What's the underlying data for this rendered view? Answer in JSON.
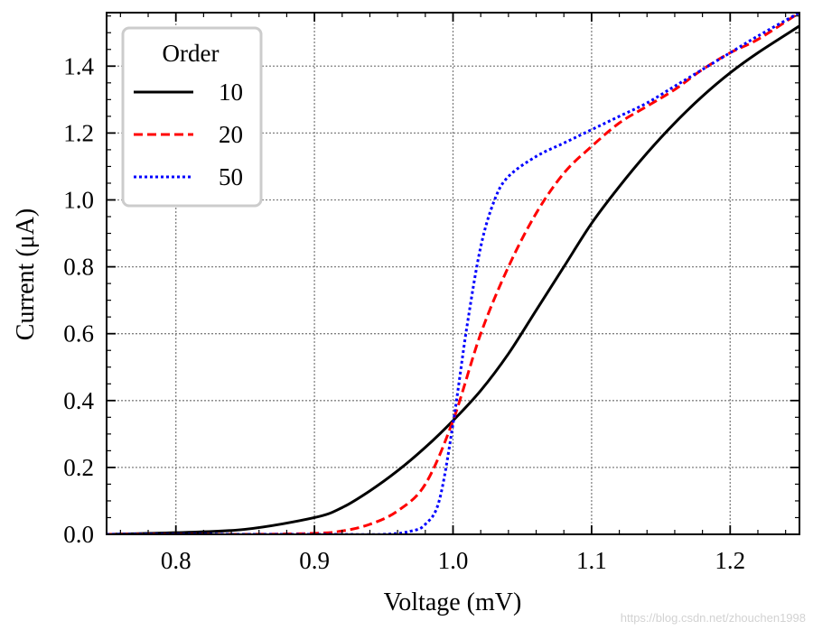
{
  "chart_data": {
    "type": "line",
    "title": "",
    "xlabel": "Voltage (mV)",
    "ylabel": "Current (μA)",
    "xlim": [
      0.75,
      1.25
    ],
    "ylim": [
      0.0,
      1.56
    ],
    "xticks": [
      0.8,
      0.9,
      1.0,
      1.1,
      1.2
    ],
    "xtick_labels": [
      "0.8",
      "0.9",
      "1.0",
      "1.1",
      "1.2"
    ],
    "yticks": [
      0.0,
      0.2,
      0.4,
      0.6,
      0.8,
      1.0,
      1.2,
      1.4
    ],
    "ytick_labels": [
      "0.0",
      "0.2",
      "0.4",
      "0.6",
      "0.8",
      "1.0",
      "1.2",
      "1.4"
    ],
    "grid": true,
    "legend": {
      "title": "Order",
      "placement": "top-left"
    },
    "series": [
      {
        "name": "10",
        "color": "#000000",
        "style": "solid",
        "x": [
          0.75,
          0.8,
          0.85,
          0.9,
          0.92,
          0.94,
          0.96,
          0.98,
          1.0,
          1.02,
          1.04,
          1.06,
          1.08,
          1.1,
          1.12,
          1.14,
          1.16,
          1.18,
          1.2,
          1.22,
          1.25
        ],
        "y": [
          0.0,
          0.005,
          0.015,
          0.05,
          0.08,
          0.13,
          0.19,
          0.26,
          0.34,
          0.43,
          0.54,
          0.67,
          0.8,
          0.93,
          1.04,
          1.14,
          1.23,
          1.31,
          1.38,
          1.44,
          1.52
        ]
      },
      {
        "name": "20",
        "color": "#ff0000",
        "style": "dashed",
        "x": [
          0.75,
          0.85,
          0.9,
          0.92,
          0.94,
          0.96,
          0.98,
          1.0,
          1.02,
          1.04,
          1.06,
          1.08,
          1.1,
          1.12,
          1.14,
          1.16,
          1.18,
          1.2,
          1.22,
          1.25
        ],
        "y": [
          0.0,
          0.0,
          0.003,
          0.01,
          0.03,
          0.07,
          0.15,
          0.34,
          0.6,
          0.8,
          0.96,
          1.08,
          1.16,
          1.23,
          1.28,
          1.33,
          1.39,
          1.44,
          1.48,
          1.56
        ]
      },
      {
        "name": "50",
        "color": "#0000ff",
        "style": "dotted",
        "x": [
          0.75,
          0.9,
          0.95,
          0.97,
          0.98,
          0.99,
          1.0,
          1.01,
          1.02,
          1.03,
          1.04,
          1.06,
          1.08,
          1.1,
          1.12,
          1.14,
          1.16,
          1.18,
          1.2,
          1.22,
          1.25
        ],
        "y": [
          0.0,
          0.0,
          0.0,
          0.01,
          0.03,
          0.1,
          0.33,
          0.62,
          0.86,
          1.0,
          1.07,
          1.13,
          1.17,
          1.21,
          1.25,
          1.29,
          1.34,
          1.39,
          1.44,
          1.49,
          1.56
        ]
      }
    ]
  },
  "watermark": "https://blog.csdn.net/zhouchen1998"
}
